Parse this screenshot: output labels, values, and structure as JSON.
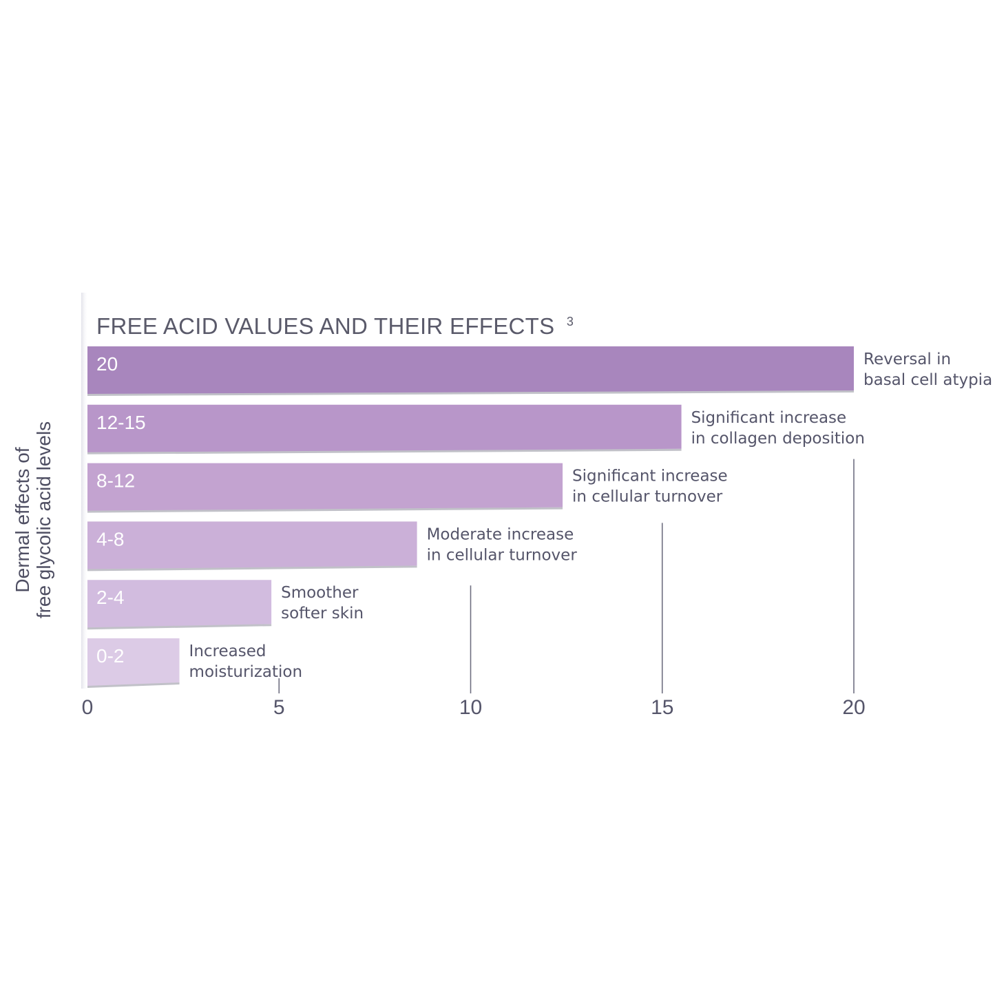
{
  "chart_data": {
    "type": "bar",
    "orientation": "horizontal",
    "title": "FREE ACID VALUES AND THEIR EFFECTS",
    "title_superscript": "3",
    "ylabel_lines": [
      "Dermal effects of",
      "free glycolic acid levels"
    ],
    "xlim": [
      0,
      20
    ],
    "xticks": [
      "0",
      "5",
      "10",
      "15",
      "20"
    ],
    "categories": [
      "20",
      "12-15",
      "8-12",
      "4-8",
      "2-4",
      "0-2"
    ],
    "values": [
      20,
      15.5,
      12.4,
      8.6,
      4.8,
      2.4
    ],
    "annotations": [
      [
        "Reversal in",
        "basal cell atypia"
      ],
      [
        "Significant increase",
        "in collagen deposition"
      ],
      [
        "Significant increase",
        "in cellular turnover"
      ],
      [
        "Moderate increase",
        "in cellular turnover"
      ],
      [
        "Smoother",
        "softer skin"
      ],
      [
        "Increased",
        "moisturization"
      ]
    ],
    "colors": [
      "#a886bd",
      "#b896c9",
      "#c3a3d0",
      "#cbb0d8",
      "#d2bcdf",
      "#dccbe6"
    ],
    "grid": false,
    "legend": "none"
  }
}
